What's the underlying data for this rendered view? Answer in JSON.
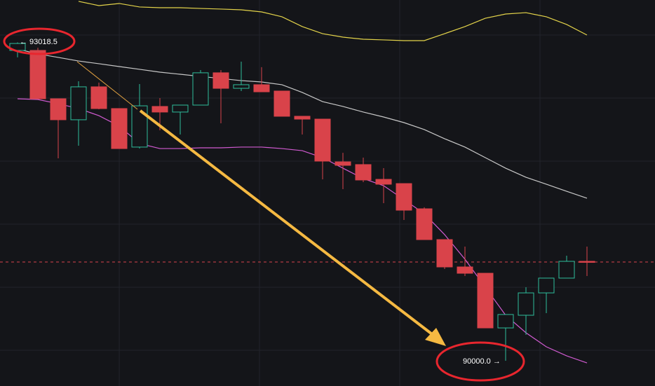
{
  "chart_data": {
    "type": "candlestick",
    "categories": [
      null,
      null,
      null,
      null,
      null,
      null,
      null,
      null,
      null,
      null,
      null,
      null,
      null,
      null,
      null,
      null,
      null,
      null,
      null,
      null,
      null,
      null,
      null,
      null,
      null,
      null,
      null,
      null,
      null
    ],
    "open": [
      92942,
      92942,
      92484,
      92285,
      92597,
      92391,
      92026,
      92411,
      92358,
      92424,
      92730,
      92583,
      92617,
      92557,
      92318,
      92291,
      91886,
      91860,
      91720,
      91680,
      91441,
      91149,
      90890,
      90830,
      90312,
      90432,
      90644,
      90784,
      90943
    ],
    "close": [
      93008,
      92484,
      92285,
      92597,
      92391,
      92012,
      92417,
      92358,
      92424,
      92730,
      92583,
      92617,
      92550,
      92318,
      92291,
      91893,
      91853,
      91714,
      91674,
      91428,
      91149,
      90890,
      90830,
      90312,
      90439,
      90644,
      90784,
      90943,
      90937
    ],
    "high": [
      93018.5,
      92968,
      92484,
      92650,
      92637,
      92391,
      92623,
      92490,
      92424,
      92756,
      92756,
      92836,
      92783,
      92557,
      92318,
      92291,
      91972,
      91926,
      91826,
      91680,
      91455,
      91149,
      91083,
      90830,
      90439,
      90698,
      90784,
      90996,
      91083
    ],
    "low": [
      92876,
      92484,
      91919,
      92039,
      92384,
      92012,
      92012,
      92185,
      92145,
      92424,
      92251,
      92557,
      92550,
      92318,
      92145,
      91720,
      91627,
      91694,
      91494,
      91335,
      91149,
      90870,
      90804,
      90312,
      90000,
      90246,
      90452,
      90784,
      90804
    ],
    "up_color": "#2ebd9b",
    "down_color": "#d9434a",
    "lines": [
      {
        "color": "#c8c8c8",
        "values": [
          92955,
          92909,
          92876,
          92842,
          92816,
          92789,
          92763,
          92736,
          92716,
          92696,
          92676,
          92656,
          92643,
          92617,
          92544,
          92457,
          92411,
          92358,
          92311,
          92258,
          92192,
          92105,
          92026,
          91926,
          91826,
          91740,
          91674,
          91607,
          91541
        ]
      },
      {
        "color": "#e3d34a",
        "values": [
          null,
          null,
          null,
          93407,
          93367,
          93387,
          93354,
          93347,
          93347,
          93340,
          93334,
          93327,
          93307,
          93261,
          93168,
          93101,
          93068,
          93048,
          93042,
          93035,
          93035,
          93101,
          93168,
          93247,
          93287,
          93300,
          93261,
          93188,
          93088
        ]
      },
      {
        "color": "#d05ad0",
        "values": [
          92484,
          92477,
          92437,
          92391,
          92324,
          92225,
          92059,
          92012,
          92012,
          92019,
          92019,
          92026,
          92026,
          92012,
          91992,
          91926,
          91826,
          91727,
          91660,
          91528,
          91395,
          91196,
          90963,
          90698,
          90432,
          90266,
          90133,
          90047,
          89980
        ]
      }
    ],
    "price_line": 90937,
    "ylim": [
      89761.36,
      93420
    ],
    "annotations": [
      "← 93018.5",
      "90000.0 →"
    ]
  }
}
